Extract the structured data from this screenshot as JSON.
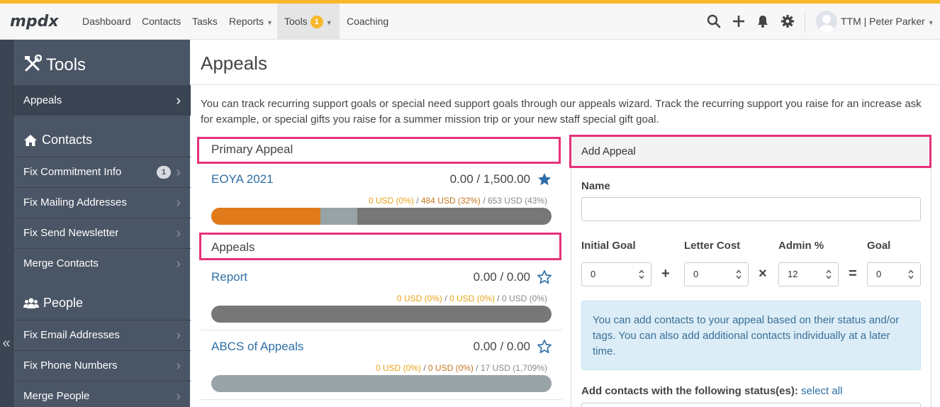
{
  "nav": {
    "logo_text": "mpdx",
    "items": [
      {
        "label": "Dashboard"
      },
      {
        "label": "Contacts"
      },
      {
        "label": "Tasks"
      },
      {
        "label": "Reports"
      },
      {
        "label": "Tools",
        "badge": "1"
      },
      {
        "label": "Coaching"
      }
    ],
    "user": "TTM | Peter Parker",
    "accent": "#f7b82a"
  },
  "sidebar": {
    "title": "Tools",
    "sections": [
      {
        "label": "Contacts",
        "icon": "home-icon"
      },
      {
        "label": "People",
        "icon": "people-icon"
      }
    ],
    "items": [
      {
        "label": "Appeals"
      },
      {
        "label": "Fix Commitment Info",
        "badge": "1"
      },
      {
        "label": "Fix Mailing Addresses"
      },
      {
        "label": "Fix Send Newsletter"
      },
      {
        "label": "Merge Contacts"
      },
      {
        "label": "Fix Email Addresses"
      },
      {
        "label": "Fix Phone Numbers"
      },
      {
        "label": "Merge People"
      }
    ],
    "collapse": "«"
  },
  "page": {
    "title": "Appeals",
    "intro": "You can track recurring support goals or special need support goals through our appeals wizard. Track the recurring support you raise for an increase ask for example, or special gifts you raise for a summer mission trip or your new staff special gift goal."
  },
  "primary": {
    "heading": "Primary Appeal",
    "name": "EOYA 2021",
    "amount": "0.00 / 1,500.00",
    "pledged": "0 USD (0%)",
    "received": "484 USD (32%)",
    "given": "653 USD (43%)",
    "received_fraction": 0.32,
    "given_fraction": 0.43,
    "starred": true
  },
  "appeals": {
    "heading": "Appeals",
    "list": [
      {
        "name": "Report",
        "amount": "0.00 / 0.00",
        "pledged": "0 USD (0%)",
        "received": "0 USD (0%)",
        "given": "0 USD (0%)",
        "starred": false
      },
      {
        "name": "ABCS of Appeals",
        "amount": "0.00 / 0.00",
        "pledged": "0 USD (0%)",
        "received": "0 USD (0%)",
        "given": "17 USD (1,709%)",
        "starred": false
      }
    ]
  },
  "add_appeal": {
    "heading": "Add Appeal",
    "name_label": "Name",
    "initial_goal_label": "Initial Goal",
    "letter_cost_label": "Letter Cost",
    "admin_label": "Admin %",
    "goal_label": "Goal",
    "initial_goal": "0",
    "letter_cost": "0",
    "admin": "12",
    "goal": "0",
    "op_plus": "+",
    "op_times": "×",
    "op_equals": "=",
    "info": "You can add contacts to your appeal based on their status and/or tags. You can also add additional contacts individually at a later time.",
    "status_label": "Add contacts with the following status(es):",
    "select_all": "select all"
  },
  "sep_slash": "/"
}
